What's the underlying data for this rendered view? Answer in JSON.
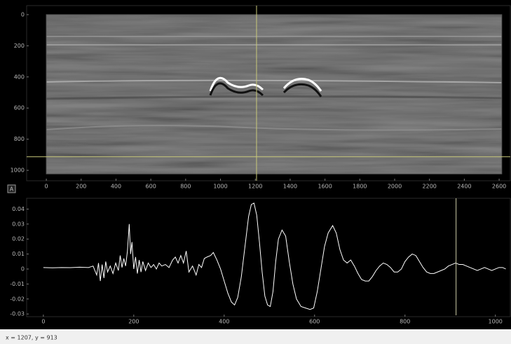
{
  "chart_data": [
    {
      "type": "image",
      "xlim": [
        -113,
        2664
      ],
      "ylim": [
        1067,
        -58
      ],
      "xticks": [
        0,
        200,
        400,
        600,
        800,
        1000,
        1200,
        1400,
        1600,
        1800,
        2000,
        2200,
        2400,
        2600
      ],
      "yticks": [
        0,
        200,
        400,
        600,
        800,
        1000
      ],
      "image_extent": [
        0,
        2615,
        0,
        1023
      ],
      "crosshair": [
        1207,
        913
      ],
      "crosshair_color": "#c9c97a"
    },
    {
      "type": "line",
      "xlim": [
        -37,
        1033
      ],
      "ylim": [
        -0.0318,
        0.0472
      ],
      "xticks": [
        0,
        200,
        400,
        600,
        800,
        1000
      ],
      "yticks": [
        -0.03,
        -0.02,
        -0.01,
        0,
        0.01,
        0.02,
        0.03,
        0.04
      ],
      "color": "#ffffff",
      "marker_x": 913,
      "marker_color": "#c9c9a6",
      "x": [
        0,
        20,
        40,
        60,
        80,
        100,
        110,
        118,
        122,
        126,
        130,
        134,
        138,
        142,
        148,
        154,
        160,
        166,
        170,
        174,
        178,
        182,
        186,
        190,
        193,
        196,
        200,
        204,
        208,
        212,
        216,
        220,
        226,
        232,
        238,
        244,
        250,
        256,
        262,
        270,
        278,
        286,
        292,
        298,
        304,
        310,
        316,
        322,
        330,
        338,
        344,
        350,
        356,
        362,
        370,
        376,
        384,
        392,
        400,
        408,
        416,
        423,
        430,
        438,
        446,
        454,
        460,
        466,
        472,
        478,
        484,
        490,
        496,
        502,
        508,
        514,
        520,
        528,
        536,
        544,
        552,
        560,
        570,
        580,
        590,
        598,
        606,
        614,
        622,
        630,
        640,
        648,
        656,
        664,
        672,
        680,
        688,
        696,
        704,
        712,
        720,
        728,
        736,
        744,
        752,
        760,
        768,
        776,
        784,
        792,
        800,
        808,
        816,
        824,
        832,
        840,
        848,
        856,
        864,
        872,
        880,
        888,
        896,
        904,
        912,
        920,
        928,
        936,
        944,
        952,
        960,
        968,
        976,
        984,
        992,
        1000,
        1008,
        1016,
        1023
      ],
      "values": [
        0.001,
        0.0008,
        0.001,
        0.0009,
        0.0012,
        0.001,
        0.002,
        -0.004,
        0.004,
        -0.008,
        0.003,
        -0.006,
        0.005,
        -0.002,
        0.002,
        -0.003,
        0.004,
        -0.001,
        0.009,
        0.001,
        0.007,
        0.002,
        0.012,
        0.03,
        0.01,
        0.018,
        0.0,
        0.008,
        -0.003,
        0.006,
        -0.002,
        0.005,
        -0.001,
        0.004,
        0.001,
        0.003,
        0.0,
        0.004,
        0.002,
        0.003,
        0.001,
        0.006,
        0.008,
        0.004,
        0.009,
        0.004,
        0.012,
        -0.002,
        0.002,
        -0.004,
        0.003,
        0.001,
        0.007,
        0.008,
        0.009,
        0.011,
        0.006,
        0.0,
        -0.008,
        -0.016,
        -0.022,
        -0.024,
        -0.019,
        -0.005,
        0.015,
        0.035,
        0.043,
        0.044,
        0.036,
        0.018,
        -0.002,
        -0.018,
        -0.024,
        -0.025,
        -0.015,
        0.005,
        0.02,
        0.026,
        0.022,
        0.005,
        -0.01,
        -0.02,
        -0.025,
        -0.026,
        -0.027,
        -0.026,
        -0.015,
        0.0,
        0.015,
        0.024,
        0.029,
        0.024,
        0.013,
        0.006,
        0.004,
        0.006,
        0.002,
        -0.003,
        -0.007,
        -0.008,
        -0.008,
        -0.005,
        -0.001,
        0.002,
        0.004,
        0.003,
        0.001,
        -0.002,
        -0.002,
        0.0,
        0.005,
        0.008,
        0.01,
        0.009,
        0.005,
        0.001,
        -0.002,
        -0.003,
        -0.003,
        -0.002,
        -0.001,
        0.0,
        0.002,
        0.003,
        0.004,
        0.003,
        0.003,
        0.002,
        0.001,
        0.0,
        -0.001,
        0.0,
        0.001,
        0.0,
        -0.001,
        0.0,
        0.001,
        0.001,
        0.0
      ]
    }
  ],
  "button_label": "A",
  "status_text": "x = 1207, y = 913"
}
